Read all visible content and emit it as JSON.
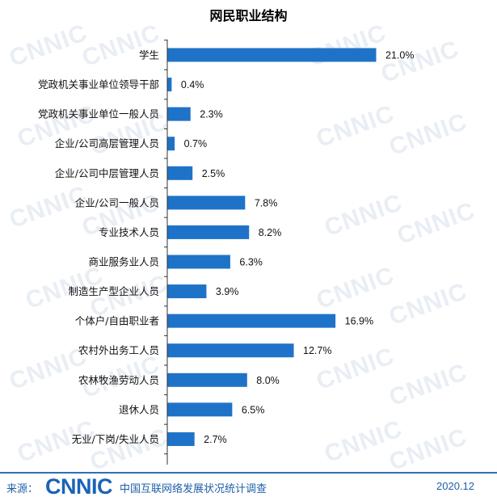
{
  "title": "网民职业结构",
  "footer": {
    "source_label": "来源：",
    "logo_text": "CNNIC",
    "org_name": "中国互联网络发展状况统计调查",
    "date": "2020.12"
  },
  "watermark_text": "CNNIC",
  "colors": {
    "bar": "#1e73c8",
    "axis": "#333333",
    "accent": "#2f6fb8"
  },
  "chart_data": {
    "type": "bar",
    "orientation": "horizontal",
    "title": "网民职业结构",
    "categories": [
      "学生",
      "党政机关事业单位领导干部",
      "党政机关事业单位一般人员",
      "企业/公司高层管理人员",
      "企业/公司中层管理人员",
      "企业/公司一般人员",
      "专业技术人员",
      "商业服务业人员",
      "制造生产型企业人员",
      "个体户/自由职业者",
      "农村外出务工人员",
      "农林牧渔劳动人员",
      "退休人员",
      "无业/下岗/失业人员"
    ],
    "values": [
      21.0,
      0.4,
      2.3,
      0.7,
      2.5,
      7.8,
      8.2,
      6.3,
      3.9,
      16.9,
      12.7,
      8.0,
      6.5,
      2.7
    ],
    "value_labels": [
      "21.0%",
      "0.4%",
      "2.3%",
      "0.7%",
      "2.5%",
      "7.8%",
      "8.2%",
      "6.3%",
      "3.9%",
      "16.9%",
      "12.7%",
      "8.0%",
      "6.5%",
      "2.7%"
    ],
    "xlim": [
      0,
      21.0
    ],
    "grid": false,
    "legend": "none"
  }
}
